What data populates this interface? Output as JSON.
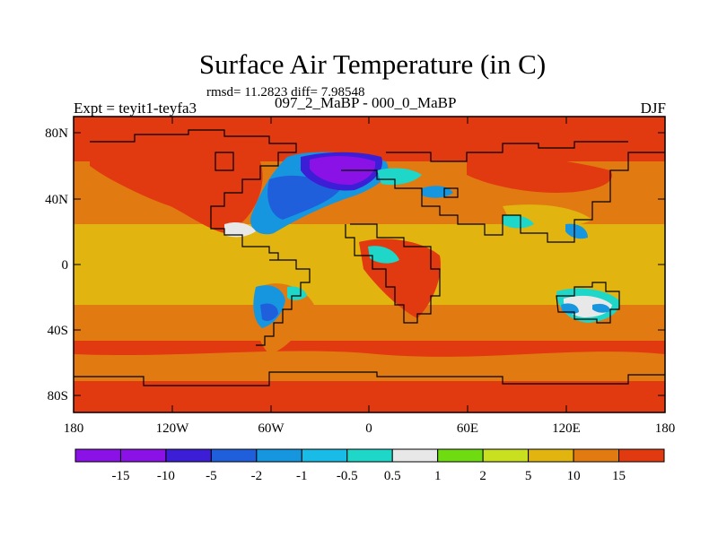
{
  "title": "Surface Air Temperature (in C)",
  "stats": "rmsd= 11.2823 diff= 7.98548",
  "subtitle": "097_2_MaBP - 000_0_MaBP",
  "left_string": "Expt = teyit1-teyfa3",
  "right_string": "DJF",
  "lat_labels": [
    "80N",
    "40N",
    "0",
    "40S",
    "80S"
  ],
  "lon_labels": [
    "180",
    "120W",
    "60W",
    "0",
    "60E",
    "120E",
    "180"
  ],
  "colorbar": {
    "labels": [
      "-15",
      "-10",
      "-5",
      "-2",
      "-1",
      "-0.5",
      "0.5",
      "1",
      "2",
      "5",
      "10",
      "15"
    ],
    "colors": [
      "#8a12e6",
      "#3c1ed6",
      "#1f5fdc",
      "#1796e0",
      "#18bce6",
      "#1ed7c9",
      "#e8e8e8",
      "#6edc10",
      "#c8e020",
      "#e2b410",
      "#e27a12",
      "#e23a10"
    ]
  }
}
